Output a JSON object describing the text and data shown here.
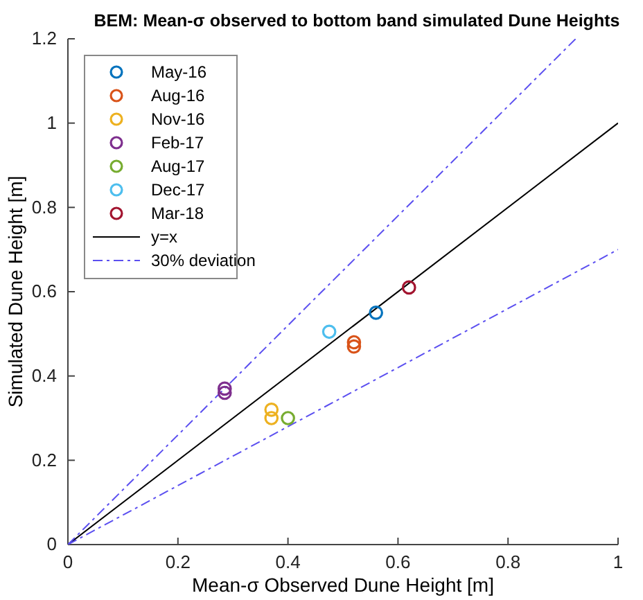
{
  "chart_data": {
    "type": "scatter",
    "title": "BEM: Mean-σ observed to bottom band simulated Dune Heights",
    "xlabel": "Mean-σ Observed Dune Height [m]",
    "ylabel": "Simulated Dune Height [m]",
    "xlim": [
      0,
      1
    ],
    "ylim": [
      0,
      1.2
    ],
    "xticks": [
      0,
      0.2,
      0.4,
      0.6,
      0.8,
      1
    ],
    "yticks": [
      0,
      0.2,
      0.4,
      0.6,
      0.8,
      1,
      1.2
    ],
    "grid": false,
    "legend": "top left",
    "marker": "circle",
    "series": [
      {
        "name": "May-16",
        "color": "#0072bd",
        "x": [
          0.56
        ],
        "values": [
          0.55
        ]
      },
      {
        "name": "Aug-16",
        "color": "#d95319",
        "x": [
          0.52,
          0.52
        ],
        "values": [
          0.48,
          0.47
        ]
      },
      {
        "name": "Nov-16",
        "color": "#edb120",
        "x": [
          0.37,
          0.37
        ],
        "values": [
          0.32,
          0.3
        ]
      },
      {
        "name": "Feb-17",
        "color": "#7e2f8e",
        "x": [
          0.285,
          0.285
        ],
        "values": [
          0.37,
          0.36
        ]
      },
      {
        "name": "Aug-17",
        "color": "#77ac30",
        "x": [
          0.4
        ],
        "values": [
          0.3
        ]
      },
      {
        "name": "Dec-17",
        "color": "#4dbeee",
        "x": [
          0.475
        ],
        "values": [
          0.505
        ]
      },
      {
        "name": "Mar-18",
        "color": "#a2142f",
        "x": [
          0.62
        ],
        "values": [
          0.61
        ]
      },
      {
        "name": "y=x",
        "type": "line",
        "color": "#000000",
        "line_style": "solid",
        "marker": "none",
        "x": [
          0,
          1
        ],
        "values": [
          0,
          1
        ]
      },
      {
        "name": "30% deviation",
        "type": "line",
        "color": "#5b4ff0",
        "line_style": "dashdot",
        "marker": "none",
        "x": [
          0,
          0.923
        ],
        "values": [
          0,
          1.2
        ]
      },
      {
        "type": "line",
        "color": "#5b4ff0",
        "line_style": "dashdot",
        "marker": "none",
        "x": [
          0,
          1
        ],
        "values": [
          0,
          0.7
        ]
      }
    ]
  }
}
